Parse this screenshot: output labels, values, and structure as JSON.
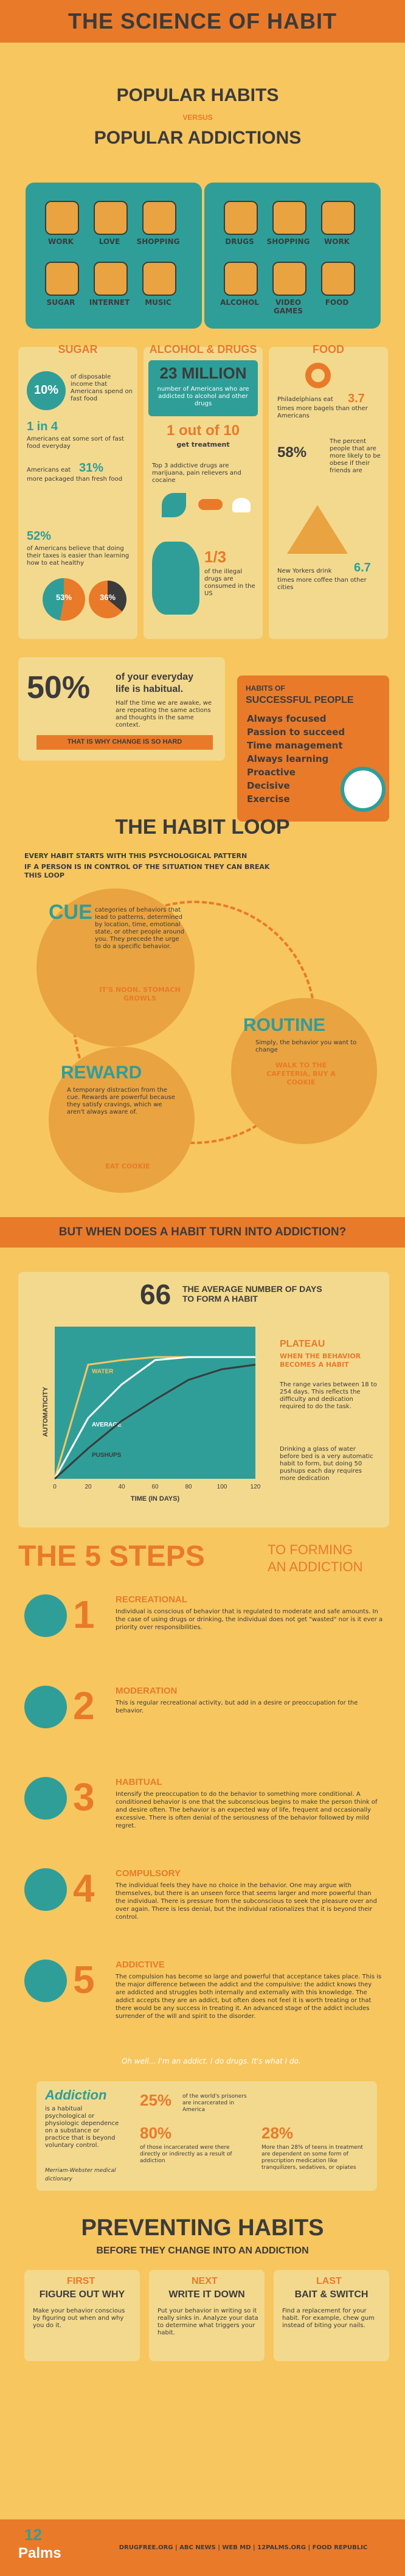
{
  "header": {
    "title": "THE SCIENCE OF HABIT"
  },
  "popular": {
    "line1": "POPULAR HABITS",
    "versus": "VERSUS",
    "line2": "POPULAR ADDICTIONS",
    "left_icons": [
      "WORK",
      "LOVE",
      "SHOPPING",
      "SUGAR",
      "INTERNET",
      "MUSIC"
    ],
    "right_icons": [
      "DRUGS",
      "SHOPPING",
      "WORK",
      "ALCOHOL",
      "VIDEO GAMES",
      "FOOD"
    ]
  },
  "sugar": {
    "title": "SUGAR",
    "stat1": "10%",
    "stat1_text": "of disposable income that Americans spend on fast food",
    "stat2": "1 in 4",
    "stat2_text": "Americans eat some sort of fast food everyday",
    "stat3_pre": "Americans eat",
    "stat3": "31%",
    "stat3_text": "more packaged than fresh food",
    "stat4": "52%",
    "stat4_text": "of Americans believe that doing their taxes is easier than learning how to eat healthy",
    "pie1": "53%",
    "pie2": "36%"
  },
  "alcohol": {
    "title": "ALCOHOL & DRUGS",
    "stat1": "23 MILLION",
    "stat1_text": "number of Americans who are addicted to alcohol and other drugs",
    "stat2": "1 out of 10",
    "stat2_text": "get treatment",
    "stat3_text": "Top 3 addictive drugs are marijuana, pain relievers and cocaine",
    "stat4": "1/3",
    "stat4_text": "of the illegal drugs are consumed in the US"
  },
  "food": {
    "title": "FOOD",
    "stat1_text": "Philadelphians eat",
    "stat1": "3.7",
    "stat1_tail": "times more bagels than other Americans",
    "stat2": "58%",
    "stat2_text": "The percent people that are more likely to be obese if their friends are",
    "stat3_text": "New Yorkers drink",
    "stat3": "6.7",
    "stat3_tail": "times more coffee than other cities"
  },
  "habitual": {
    "percent": "50%",
    "line1": "of your everyday",
    "line2": "life is habitual.",
    "desc": "Half the time we are awake, we are repeating the same actions and thoughts in the same context.",
    "banner": "THAT IS WHY CHANGE IS SO HARD",
    "successful_pre": "HABITS OF",
    "successful_title": "SUCCESSFUL PEOPLE",
    "successful": [
      "Always focused",
      "Passion to succeed",
      "Time management",
      "Always learning",
      "Proactive",
      "Decisive",
      "Exercise"
    ]
  },
  "loop": {
    "title": "THE HABIT LOOP",
    "intro1": "EVERY HABIT STARTS WITH THIS PSYCHOLOGICAL PATTERN",
    "intro2": "IF A PERSON IS IN CONTROL OF THE SITUATION THEY CAN BREAK THIS LOOP",
    "cue_title": "CUE",
    "cue_text": "categories of behaviors that lead to patterns, determined by location, time, emotional state, or other people around you. They precede the urge to do a specific behavior.",
    "cue_example": "IT'S NOON. STOMACH GROWLS",
    "routine_title": "ROUTINE",
    "routine_text": "Simply, the behavior you want to change",
    "routine_example": "WALK TO THE CAFETERIA, BUY A COOKIE",
    "reward_title": "REWARD",
    "reward_text": "A temporary distraction from the cue. Rewards are powerful because they satisfy cravings, which we aren't always aware of.",
    "reward_example": "EAT COOKIE"
  },
  "question": {
    "text": "BUT WHEN DOES A HABIT TURN INTO ADDICTION?"
  },
  "days": {
    "number": "66",
    "text": "THE AVERAGE NUMBER OF DAYS TO FORM A HABIT",
    "ylabel": "AUTOMATICITY",
    "xlabel": "TIME (IN DAYS)",
    "plateau_title": "PLATEAU",
    "plateau_text": "WHEN THE BEHAVIOR BECOMES A HABIT",
    "range_text": "The range varies between 18 to 254 days. This reflects the difficulty and dedication required to do the task.",
    "example_text": "Drinking a glass of water before bed is a very automatic habit to form, but doing 50 pushups each day requires more dedication",
    "line_labels": [
      "WATER",
      "AVERAGE",
      "PUSHUPS"
    ]
  },
  "chart_data": {
    "type": "line",
    "xlabel": "TIME (IN DAYS)",
    "ylabel": "AUTOMATICITY",
    "x": [
      0,
      20,
      40,
      60,
      80,
      100,
      120
    ],
    "xlim": [
      0,
      120
    ],
    "series": [
      {
        "name": "WATER",
        "values": [
          0,
          0.75,
          0.78,
          0.8,
          0.8,
          0.8,
          0.8
        ]
      },
      {
        "name": "AVERAGE",
        "values": [
          0,
          0.4,
          0.62,
          0.78,
          0.8,
          0.8,
          0.8
        ]
      },
      {
        "name": "PUSHUPS",
        "values": [
          0,
          0.2,
          0.38,
          0.52,
          0.65,
          0.72,
          0.75
        ]
      }
    ]
  },
  "steps": {
    "title": "THE 5 STEPS",
    "subtitle1": "TO FORMING",
    "subtitle2": "AN ADDICTION",
    "items": [
      {
        "num": "1",
        "name": "RECREATIONAL",
        "text": "Individual is conscious of behavior that is regulated to moderate and safe amounts. In the case of using drugs or drinking, the individual does not get \"wasted\" nor is it ever a priority over responsibilities."
      },
      {
        "num": "2",
        "name": "MODERATION",
        "text": "This is regular recreational activity, but add in a desire or preoccupation for the behavior."
      },
      {
        "num": "3",
        "name": "HABITUAL",
        "text": "Intensify the preoccupation to do the behavior to something more conditional. A conditioned behavior is one that the subconscious begins to make the person think of and desire often. The behavior is an expected way of life, frequent and occasionally excessive. There is often denial of the seriousness of the behavior followed by mild regret."
      },
      {
        "num": "4",
        "name": "COMPULSORY",
        "text": "The individual feels they have no choice in the behavior. One may argue with themselves, but there is an unseen force that seems larger and more powerful than the individual. There is pressure from the subconscious to seek the pleasure over and over again. There is less denial, but the individual rationalizes that it is beyond their control."
      },
      {
        "num": "5",
        "name": "ADDICTIVE",
        "text": "The compulsion has become so large and powerful that acceptance takes place. This is the major difference between the addict and the compulsive: the addict knows they are addicted and struggles both internally and externally with this knowledge. The addict accepts they are an addict, but often does not feel it is worth treating or that there would be any success in treating it. An advanced stage of the addict includes surrender of the will and spirit to the disorder."
      }
    ],
    "quote": "Oh well... I'm an addict. I do drugs. It's what I do."
  },
  "addiction": {
    "title": "Addiction",
    "def": "is a habitual psychological or physiologic dependence on a substance or practice that is beyond voluntary control.",
    "source": "Merriam-Webster medical dictionary",
    "stat1": "25%",
    "stat1_text": "of the world's prisoners are incarcerated in America",
    "stat2": "80%",
    "stat2_text": "of those incarcerated were there directly or indirectly as a result of addiction",
    "stat3": "28%",
    "stat3_text": "More than 28% of teens in treatment are dependent on some form of prescription medication like tranquilizers, sedatives, or opiates"
  },
  "preventing": {
    "title": "PREVENTING HABITS",
    "subtitle": "BEFORE THEY CHANGE INTO AN ADDICTION",
    "steps": [
      {
        "label": "FIRST",
        "title": "FIGURE OUT WHY",
        "text": "Make your behavior conscious by figuring out when and why you do it."
      },
      {
        "label": "NEXT",
        "title": "WRITE IT DOWN",
        "text": "Put your behavior in writing so it really sinks in. Analyze your data to determine what triggers your habit."
      },
      {
        "label": "LAST",
        "title": "BAIT & SWITCH",
        "text": "Find a replacement for your habit. For example, chew gum instead of biting your nails."
      }
    ]
  },
  "footer": {
    "logo_num": "12",
    "logo_text": "Palms",
    "sources": "DRUGFREE.ORG | ABC NEWS | WEB MD | 12PALMS.ORG | FOOD REPUBLIC"
  }
}
